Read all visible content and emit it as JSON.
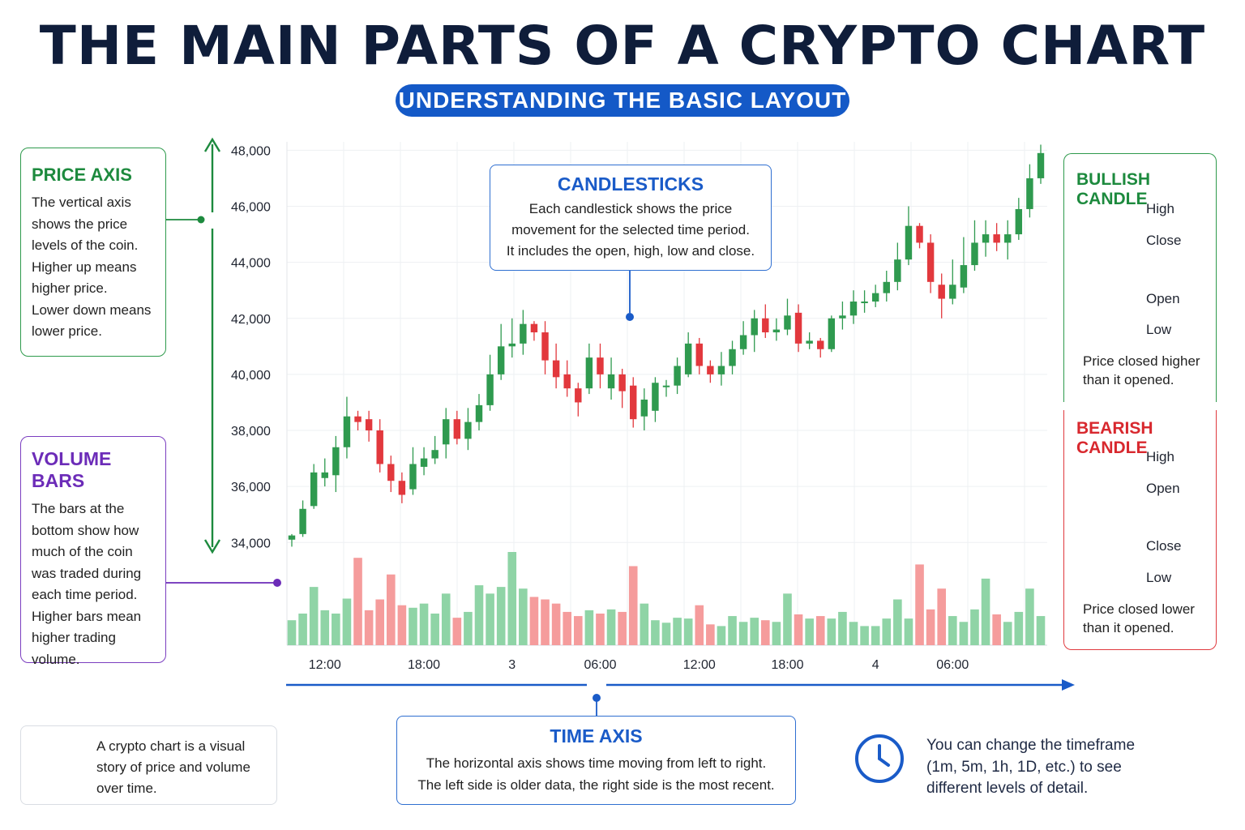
{
  "header": {
    "title": "THE MAIN PARTS OF A CRYPTO CHART",
    "subtitle": "UNDERSTANDING THE BASIC LAYOUT"
  },
  "price_axis_card": {
    "title": "PRICE AXIS",
    "lines": [
      "The vertical axis",
      "shows the price",
      "levels of the coin.",
      "Higher up means",
      "higher price.",
      "Lower down means",
      "lower price."
    ]
  },
  "volume_card": {
    "title": "VOLUME BARS",
    "lines": [
      "The bars at the",
      "bottom show how",
      "much of the coin",
      "was traded during",
      "each time period.",
      "Higher bars mean",
      "higher trading",
      "volume."
    ]
  },
  "candlesticks_callout": {
    "title": "CANDLESTICKS",
    "lines": [
      "Each candlestick shows the price",
      "movement for the selected time period.",
      "It includes the open, high, low and close."
    ]
  },
  "bullish_card": {
    "title": "BULLISH CANDLE",
    "labels": [
      "High",
      "Close",
      "Open",
      "Low"
    ],
    "description": [
      "Price closed higher",
      "than it opened."
    ]
  },
  "bearish_card": {
    "title": "BEARISH CANDLE",
    "labels": [
      "High",
      "Open",
      "Close",
      "Low"
    ],
    "description": [
      "Price closed lower",
      "than it opened."
    ]
  },
  "time_axis_card": {
    "title": "TIME AXIS",
    "lines": [
      "The horizontal axis shows time moving from left to right.",
      "The left side is older data, the right side is the most recent."
    ]
  },
  "tip": {
    "icon": "lightbulb-icon",
    "lines": [
      "A crypto chart is a visual",
      "story of price and volume",
      "over time."
    ]
  },
  "timeframe_note": {
    "icon": "clock-icon",
    "lines": [
      "You can change the timeframe",
      "(1m, 5m, 1h, 1D, etc.) to see",
      "different levels of detail."
    ]
  },
  "colors": {
    "bullish": "#2f9a4f",
    "bearish": "#e2383d",
    "volume_bullish": "#8fd4a6",
    "volume_bearish": "#f59c9c",
    "accent_blue": "#1459c7",
    "price_green": "#1d8a3e",
    "volume_purple": "#6c2cb8"
  },
  "chart_data": {
    "type": "candlestick",
    "y_ticks": [
      "48,000",
      "46,000",
      "44,000",
      "42,000",
      "40,000",
      "38,000",
      "36,000",
      "34,000"
    ],
    "y_tick_values": [
      48000,
      46000,
      44000,
      42000,
      40000,
      38000,
      36000,
      34000
    ],
    "ylim": [
      33400,
      48300
    ],
    "x_ticks": [
      "12:00",
      "18:00",
      "3",
      "06:00",
      "12:00",
      "18:00",
      "4",
      "06:00"
    ],
    "x_tick_positions": [
      3,
      12,
      20,
      28,
      37,
      45,
      53,
      60
    ],
    "grid": true,
    "candles": [
      [
        34100,
        34250,
        33850,
        34300
      ],
      [
        34300,
        35200,
        34200,
        35500
      ],
      [
        35300,
        36500,
        35200,
        36800
      ],
      [
        36300,
        36500,
        36000,
        37000
      ],
      [
        36400,
        37400,
        35800,
        37800
      ],
      [
        37400,
        38500,
        37000,
        39200
      ],
      [
        38500,
        38300,
        38000,
        38700
      ],
      [
        38400,
        38000,
        37600,
        38700
      ],
      [
        38000,
        36800,
        36500,
        38400
      ],
      [
        36800,
        36200,
        35800,
        37100
      ],
      [
        36200,
        35700,
        35400,
        36500
      ],
      [
        35900,
        36800,
        35700,
        37400
      ],
      [
        36700,
        37000,
        36400,
        37400
      ],
      [
        37000,
        37300,
        36800,
        37800
      ],
      [
        37500,
        38400,
        37000,
        38800
      ],
      [
        38400,
        37700,
        37500,
        38700
      ],
      [
        37700,
        38300,
        37300,
        38800
      ],
      [
        38300,
        38900,
        38000,
        39300
      ],
      [
        38900,
        40000,
        38700,
        40700
      ],
      [
        40000,
        41000,
        39800,
        41800
      ],
      [
        41000,
        41100,
        40600,
        42000
      ],
      [
        41100,
        41800,
        40700,
        42300
      ],
      [
        41800,
        41500,
        41200,
        41900
      ],
      [
        41500,
        40500,
        40000,
        41900
      ],
      [
        40500,
        39900,
        39500,
        41100
      ],
      [
        40000,
        39500,
        39200,
        40500
      ],
      [
        39500,
        39000,
        38500,
        39700
      ],
      [
        39500,
        40600,
        39300,
        41100
      ],
      [
        40600,
        40000,
        39500,
        41100
      ],
      [
        39500,
        40000,
        39100,
        40600
      ],
      [
        40000,
        39400,
        38800,
        40200
      ],
      [
        39600,
        38400,
        38100,
        39900
      ],
      [
        38500,
        39100,
        38000,
        39500
      ],
      [
        38700,
        39700,
        38300,
        39900
      ],
      [
        39600,
        39600,
        39200,
        39800
      ],
      [
        39600,
        40300,
        39300,
        40600
      ],
      [
        40000,
        41100,
        39900,
        41500
      ],
      [
        41100,
        40300,
        40000,
        41300
      ],
      [
        40300,
        40000,
        39700,
        40500
      ],
      [
        40000,
        40300,
        39600,
        40800
      ],
      [
        40300,
        40900,
        40000,
        41200
      ],
      [
        40900,
        41400,
        40700,
        41900
      ],
      [
        41400,
        42000,
        40800,
        42300
      ],
      [
        42000,
        41500,
        41300,
        42500
      ],
      [
        41500,
        41600,
        41200,
        42000
      ],
      [
        41600,
        42100,
        41400,
        42700
      ],
      [
        42200,
        41100,
        40800,
        42500
      ],
      [
        41100,
        41200,
        40900,
        41500
      ],
      [
        41200,
        40900,
        40600,
        41300
      ],
      [
        40900,
        42000,
        40800,
        42100
      ],
      [
        42000,
        42100,
        41600,
        42600
      ],
      [
        42100,
        42600,
        41800,
        43000
      ],
      [
        42600,
        42600,
        42200,
        43000
      ],
      [
        42600,
        42900,
        42400,
        43200
      ],
      [
        42900,
        43300,
        42600,
        43700
      ],
      [
        43300,
        44100,
        43000,
        44700
      ],
      [
        44100,
        45300,
        43900,
        46000
      ],
      [
        45300,
        44700,
        44500,
        45400
      ],
      [
        44700,
        43300,
        42900,
        45000
      ],
      [
        43200,
        42700,
        42000,
        43600
      ],
      [
        42700,
        43200,
        42500,
        44100
      ],
      [
        43100,
        43900,
        42900,
        44900
      ],
      [
        43900,
        44700,
        43700,
        45500
      ],
      [
        44700,
        45000,
        44200,
        45500
      ],
      [
        45000,
        44700,
        44400,
        45400
      ],
      [
        44700,
        45000,
        44100,
        45500
      ],
      [
        45000,
        45900,
        44800,
        46300
      ],
      [
        45900,
        47000,
        45600,
        47500
      ],
      [
        47000,
        47900,
        46800,
        48200
      ]
    ],
    "volumes": [
      30,
      38,
      70,
      42,
      38,
      56,
      105,
      42,
      55,
      85,
      48,
      45,
      50,
      38,
      62,
      33,
      40,
      72,
      62,
      70,
      112,
      68,
      58,
      55,
      50,
      40,
      35,
      42,
      38,
      43,
      40,
      95,
      50,
      30,
      27,
      33,
      32,
      48,
      25,
      23,
      35,
      28,
      33,
      30,
      28,
      62,
      37,
      32,
      35,
      32,
      40,
      28,
      23,
      23,
      32,
      55,
      32,
      97,
      43,
      68,
      35,
      28,
      43,
      80,
      37,
      28,
      40,
      68,
      35
    ],
    "ylabel": "",
    "xlabel": ""
  }
}
